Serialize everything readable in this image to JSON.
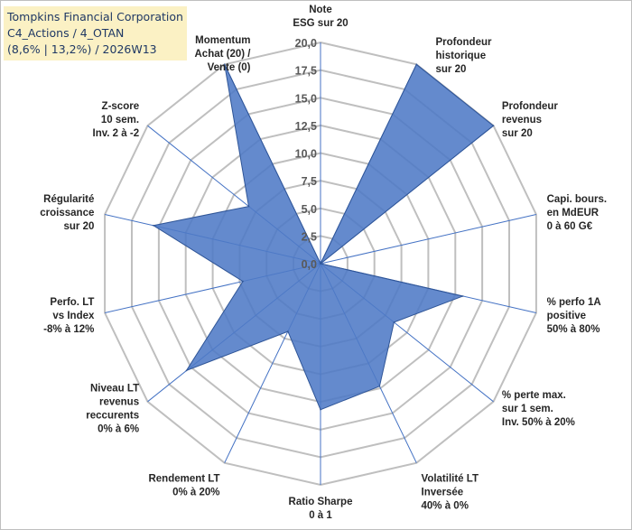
{
  "header": {
    "line1": "Tompkins Financial Corporation",
    "line2": "C4_Actions / 4_OTAN",
    "line3": "(8,6% | 13,2%) / 2026W13"
  },
  "colors": {
    "fill": "#4f7ac6",
    "stroke": "#2f5597",
    "spoke": "#4472c4",
    "grid": "#bfbfbf",
    "header_bg": "#fbf1c4",
    "header_text": "#1f3864"
  },
  "chart_data": {
    "type": "radar",
    "range": [
      0,
      20
    ],
    "ticks": [
      "0,0",
      "2,5",
      "5,0",
      "7,5",
      "10,0",
      "12,5",
      "15,0",
      "17,5",
      "20,0"
    ],
    "axes": [
      {
        "label": [
          "Note",
          "ESG sur 20"
        ],
        "value": 0
      },
      {
        "label": [
          "Profondeur",
          "historique",
          "sur 20"
        ],
        "value": 20
      },
      {
        "label": [
          "Profondeur",
          "revenus",
          "sur 20"
        ],
        "value": 20
      },
      {
        "label": [
          "Capi. bours.",
          "en MdEUR",
          "0 à 60 G€"
        ],
        "value": 0
      },
      {
        "label": [
          "% perfo 1A",
          "positive",
          "50% à 80%"
        ],
        "value": 13.2
      },
      {
        "label": [
          "% perte max.",
          "sur 1 sem.",
          "Inv. 50% à 20%"
        ],
        "value": 8.5
      },
      {
        "label": [
          "Volatilité LT",
          "Inversée",
          "40% à 0%"
        ],
        "value": 12.3
      },
      {
        "label": [
          "Ratio Sharpe",
          "0 à 1"
        ],
        "value": 13.2
      },
      {
        "label": [
          "Rendement LT",
          "0% à 20%"
        ],
        "value": 6.8
      },
      {
        "label": [
          "Niveau LT",
          "revenus",
          "reccurents",
          "0% à 6%"
        ],
        "value": 15.5
      },
      {
        "label": [
          "Perfo. LT",
          "vs Index",
          "-8% à 12%"
        ],
        "value": 7.2
      },
      {
        "label": [
          "Régularité",
          "croissance",
          "sur 20"
        ],
        "value": 15.5
      },
      {
        "label": [
          "Z-score",
          "10 sem.",
          "Inv. 2 à -2"
        ],
        "value": 8.3
      },
      {
        "label": [
          "Momentum",
          "Achat (20) /",
          "Vente (0)"
        ],
        "value": 20
      }
    ]
  }
}
